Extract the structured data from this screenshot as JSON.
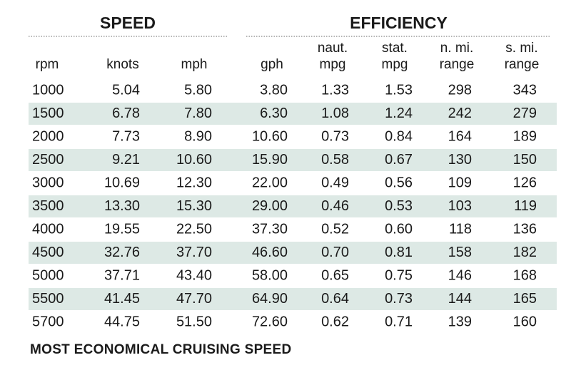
{
  "table": {
    "groups": [
      {
        "title": "SPEED",
        "columns": [
          0,
          1,
          2
        ]
      },
      {
        "title": "EFFICIENCY",
        "columns": [
          3,
          4,
          5,
          6,
          7
        ]
      }
    ],
    "headers": [
      [
        "rpm"
      ],
      [
        "knots"
      ],
      [
        "mph"
      ],
      [
        "gph"
      ],
      [
        "naut.",
        "mpg"
      ],
      [
        "stat.",
        "mpg"
      ],
      [
        "n. mi.",
        "range"
      ],
      [
        "s. mi.",
        "range"
      ]
    ],
    "rows": [
      [
        "1000",
        "5.04",
        "5.80",
        "3.80",
        "1.33",
        "1.53",
        "298",
        "343"
      ],
      [
        "1500",
        "6.78",
        "7.80",
        "6.30",
        "1.08",
        "1.24",
        "242",
        "279"
      ],
      [
        "2000",
        "7.73",
        "8.90",
        "10.60",
        "0.73",
        "0.84",
        "164",
        "189"
      ],
      [
        "2500",
        "9.21",
        "10.60",
        "15.90",
        "0.58",
        "0.67",
        "130",
        "150"
      ],
      [
        "3000",
        "10.69",
        "12.30",
        "22.00",
        "0.49",
        "0.56",
        "109",
        "126"
      ],
      [
        "3500",
        "13.30",
        "15.30",
        "29.00",
        "0.46",
        "0.53",
        "103",
        "119"
      ],
      [
        "4000",
        "19.55",
        "22.50",
        "37.30",
        "0.52",
        "0.60",
        "118",
        "136"
      ],
      [
        "4500",
        "32.76",
        "37.70",
        "46.60",
        "0.70",
        "0.81",
        "158",
        "182"
      ],
      [
        "5000",
        "37.71",
        "43.40",
        "58.00",
        "0.65",
        "0.75",
        "146",
        "168"
      ],
      [
        "5500",
        "41.45",
        "47.70",
        "64.90",
        "0.64",
        "0.73",
        "144",
        "165"
      ],
      [
        "5700",
        "44.75",
        "51.50",
        "72.60",
        "0.62",
        "0.71",
        "139",
        "160"
      ]
    ],
    "highlight_row": 7,
    "highlight_color": "#d7282f",
    "band_color": "#dde9e5",
    "footnote": "MOST ECONOMICAL CRUISING SPEED"
  }
}
